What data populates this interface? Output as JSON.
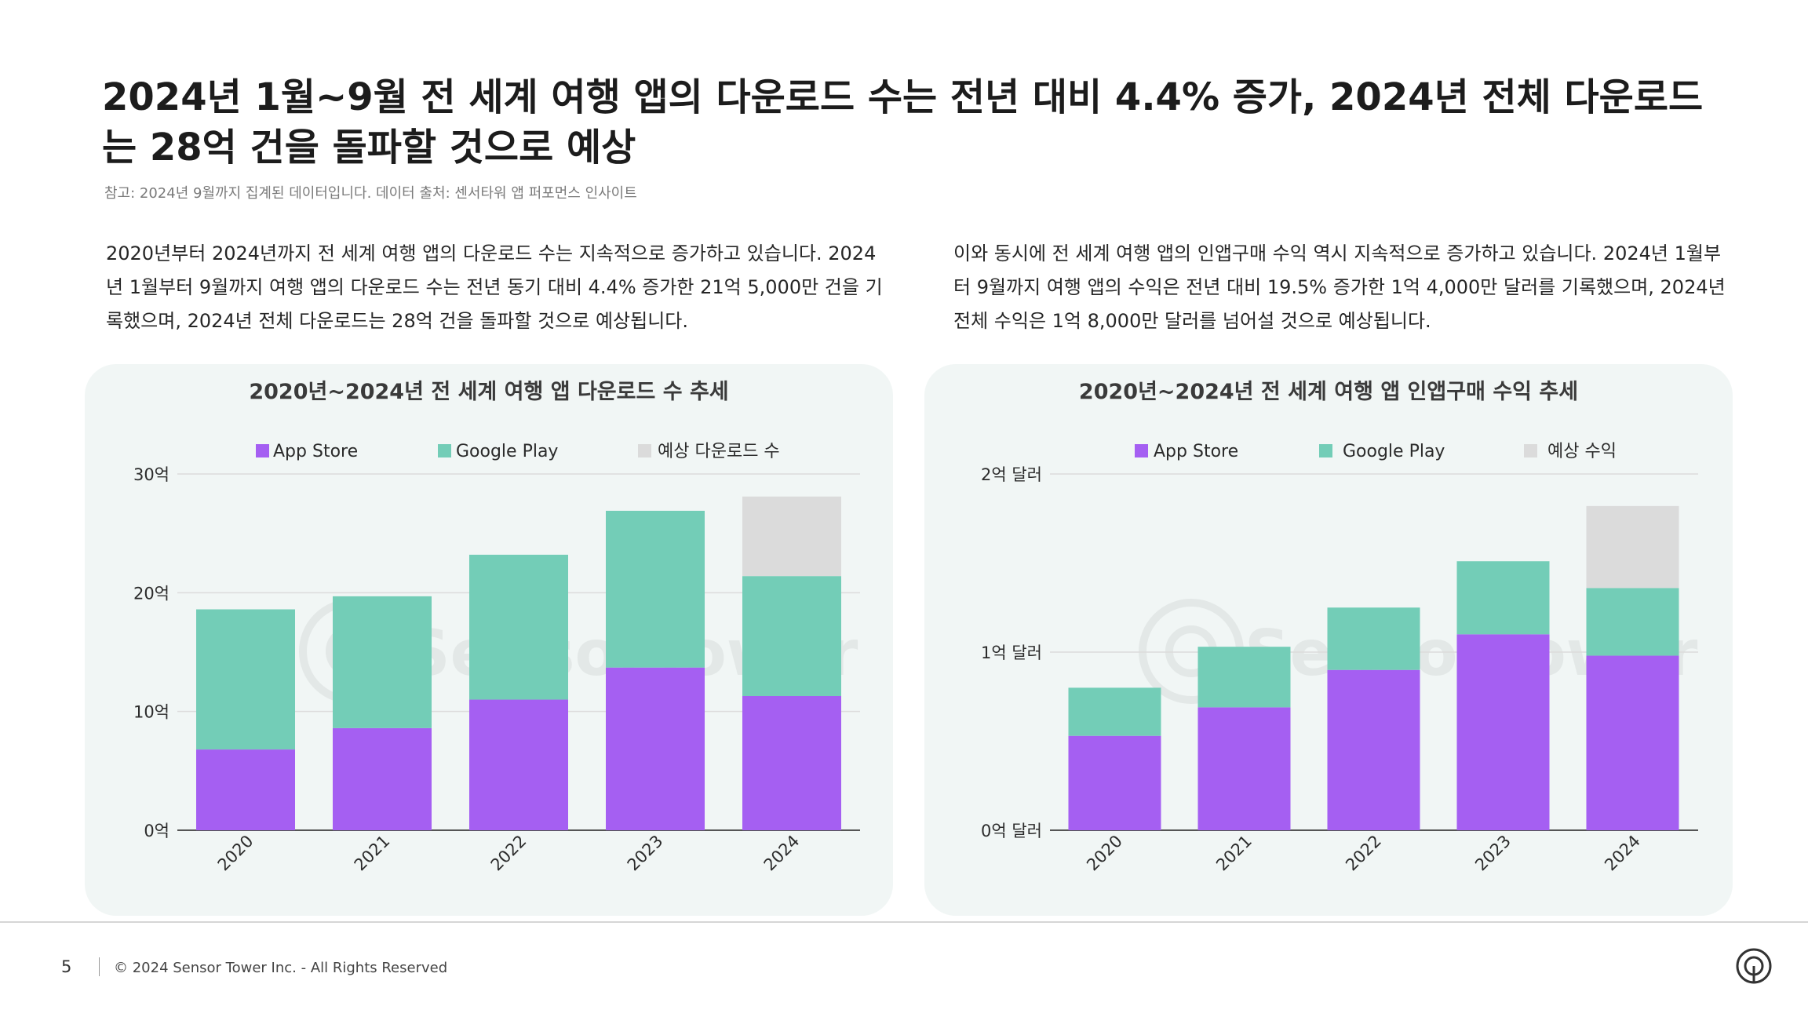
{
  "header": {
    "title": "2024년 1월~9월 전 세계 여행 앱의 다운로드 수는 전년 대비 4.4% 증가, 2024년 전체 다운로드는 28억 건을 돌파할 것으로 예상",
    "note": "참고: 2024년 9월까지 집계된 데이터입니다. 데이터 출처: 센서타워 앱 퍼포먼스 인사이트"
  },
  "paragraphs": {
    "left": "2020년부터 2024년까지 전 세계 여행 앱의 다운로드 수는 지속적으로 증가하고 있습니다. 2024년 1월부터 9월까지 여행 앱의 다운로드 수는 전년 동기 대비 4.4% 증가한 21억 5,000만 건을 기록했으며, 2024년 전체 다운로드는 28억 건을 돌파할 것으로 예상됩니다.",
    "right": "이와 동시에 전 세계 여행 앱의 인앱구매 수익 역시 지속적으로 증가하고 있습니다. 2024년 1월부터 9월까지 여행 앱의 수익은 전년 대비 19.5% 증가한 1억 4,000만 달러를 기록했으며, 2024년 전체 수익은 1억 8,000만 달러를 넘어설 것으로 예상됩니다."
  },
  "watermark": "SensorTower",
  "colors": {
    "app_store": "#a55ff2",
    "google_play": "#73cdb7",
    "forecast": "#dbdbdb",
    "grid": "#dcdcdc",
    "axis": "#555555"
  },
  "chart_data": [
    {
      "type": "bar",
      "stacked": true,
      "title": "2020년~2024년 전 세계 여행 앱 다운로드 수 추세",
      "categories": [
        "2020",
        "2021",
        "2022",
        "2023",
        "2024"
      ],
      "series": [
        {
          "name": "App Store",
          "color_key": "app_store",
          "values": [
            6.8,
            8.6,
            11.0,
            13.7,
            11.3
          ]
        },
        {
          "name": "Google Play",
          "color_key": "google_play",
          "values": [
            11.8,
            11.1,
            12.2,
            13.2,
            10.1
          ]
        },
        {
          "name": "예상 다운로드 수",
          "color_key": "forecast",
          "values": [
            0,
            0,
            0,
            0,
            6.7
          ]
        }
      ],
      "yticks": [
        0,
        10,
        20,
        30
      ],
      "ytick_labels": [
        "0억",
        "10억",
        "20억",
        "30억"
      ],
      "ylim": [
        0,
        30
      ],
      "xlabel": "",
      "ylabel": "",
      "legend_position": "top-center",
      "grid": true
    },
    {
      "type": "bar",
      "stacked": true,
      "title": "2020년~2024년 전 세계 여행 앱 인앱구매 수익 추세",
      "categories": [
        "2020",
        "2021",
        "2022",
        "2023",
        "2024"
      ],
      "series": [
        {
          "name": "App Store",
          "color_key": "app_store",
          "values": [
            0.53,
            0.69,
            0.9,
            1.1,
            0.98
          ]
        },
        {
          "name": "Google Play",
          "color_key": "google_play",
          "values": [
            0.27,
            0.34,
            0.35,
            0.41,
            0.38
          ]
        },
        {
          "name": "예상 수익",
          "color_key": "forecast",
          "values": [
            0,
            0,
            0,
            0,
            0.46
          ]
        }
      ],
      "yticks": [
        0,
        1,
        2
      ],
      "ytick_labels": [
        "0억 달러",
        "1억 달러",
        "2억 달러"
      ],
      "ylim": [
        0,
        2
      ],
      "xlabel": "",
      "ylabel": "",
      "legend_position": "top-center",
      "grid": true
    }
  ],
  "footer": {
    "page_number": "5",
    "copyright": "© 2024 Sensor Tower Inc. - All Rights Reserved"
  }
}
